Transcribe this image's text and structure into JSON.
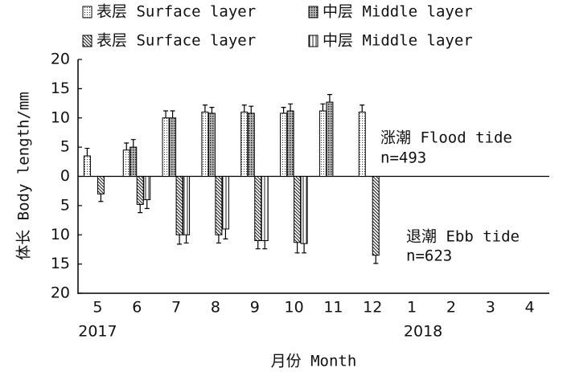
{
  "chart_data": {
    "type": "bar",
    "y_label": "体长 Body length/mm",
    "x_label": "月份 Month",
    "categories": [
      "5",
      "6",
      "7",
      "8",
      "9",
      "10",
      "11",
      "12",
      "1",
      "2",
      "3",
      "4"
    ],
    "year_labels": [
      "2017",
      null,
      null,
      null,
      null,
      null,
      null,
      null,
      "2018",
      null,
      null,
      null
    ],
    "ylim": [
      -20,
      20
    ],
    "yticks": [
      20,
      15,
      10,
      5,
      0,
      {
        "value": -5,
        "label": "5"
      },
      {
        "value": -10,
        "label": "10"
      },
      {
        "value": -15,
        "label": "15"
      },
      {
        "value": -20,
        "label": "20"
      }
    ],
    "annotations": [
      {
        "text": "涨潮 Flood tide",
        "sub": "n=493"
      },
      {
        "text": "退潮 Ebb tide",
        "sub": "n=623"
      }
    ],
    "series": [
      {
        "name": "表层 Surface layer",
        "pattern": "dots",
        "values": [
          3.5,
          4.5,
          10,
          11,
          11,
          10.8,
          11.2,
          11,
          null,
          null,
          null,
          null
        ],
        "errors": [
          1.3,
          1.2,
          1.2,
          1.2,
          1.2,
          1,
          1.2,
          1.2,
          null,
          null,
          null,
          null
        ]
      },
      {
        "name": "中层 Middle layer",
        "pattern": "cross",
        "values": [
          null,
          5,
          10,
          10.8,
          10.8,
          11.2,
          12.7,
          null,
          null,
          null,
          null,
          null
        ],
        "errors": [
          null,
          1.3,
          1.2,
          1,
          1.2,
          1.2,
          1.3,
          null,
          null,
          null,
          null,
          null
        ]
      },
      {
        "name": "表层 Surface layer",
        "pattern": "diag",
        "values": [
          -3,
          -4.8,
          -10,
          -10,
          -11,
          -11.3,
          null,
          -13.5,
          null,
          null,
          null,
          null
        ],
        "errors": [
          1.3,
          1.4,
          1.6,
          1.4,
          1.4,
          1.8,
          null,
          1.4,
          null,
          null,
          null,
          null
        ]
      },
      {
        "name": "中层 Middle layer",
        "pattern": "vert",
        "values": [
          null,
          -4,
          -10,
          -9,
          -11,
          -11.5,
          null,
          null,
          null,
          null,
          null,
          null
        ],
        "errors": [
          null,
          1.5,
          1.4,
          1.7,
          1.4,
          1.6,
          null,
          null,
          null,
          null,
          null,
          null
        ]
      }
    ]
  }
}
